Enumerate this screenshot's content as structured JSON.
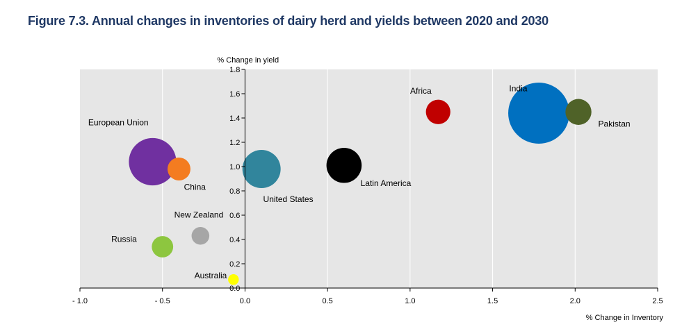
{
  "chart_data": {
    "type": "scatter",
    "title": "Figure 7.3. Annual changes in inventories of dairy herd and yields between 2020 and 2030",
    "xlabel": "% Change in Inventory",
    "ylabel": "% Change in yield",
    "xlim": [
      -1.0,
      2.5
    ],
    "ylim": [
      0.0,
      1.8
    ],
    "x_ticks": [
      -1.0,
      -0.5,
      0.0,
      0.5,
      1.0,
      1.5,
      2.0,
      2.5
    ],
    "x_tick_labels": [
      "- 1.0",
      "- 0.5",
      "0.0",
      "0.5",
      "1.0",
      "1.5",
      "2.0",
      "2.5"
    ],
    "y_ticks": [
      0.0,
      0.2,
      0.4,
      0.6,
      0.8,
      1.0,
      1.2,
      1.4,
      1.6,
      1.8
    ],
    "y_tick_labels": [
      "0.0",
      "0.2",
      "0.4",
      "0.6",
      "0.8",
      "1.0",
      "1.2",
      "1.4",
      "1.6",
      "1.8"
    ],
    "grid": "vertical",
    "points": [
      {
        "label": "European Union",
        "x": -0.56,
        "y": 1.04,
        "size": 1.55,
        "color": "#7030a0"
      },
      {
        "label": "China",
        "x": -0.4,
        "y": 0.98,
        "size": 0.75,
        "color": "#f47c20"
      },
      {
        "label": "New Zealand",
        "x": -0.27,
        "y": 0.43,
        "size": 0.58,
        "color": "#a6a6a6"
      },
      {
        "label": "Russia",
        "x": -0.5,
        "y": 0.34,
        "size": 0.7,
        "color": "#8dc63f"
      },
      {
        "label": "Australia",
        "x": -0.07,
        "y": 0.07,
        "size": 0.35,
        "color": "#ffff00"
      },
      {
        "label": "United States",
        "x": 0.1,
        "y": 0.98,
        "size": 1.25,
        "color": "#31859c"
      },
      {
        "label": "Latin America",
        "x": 0.6,
        "y": 1.01,
        "size": 1.15,
        "color": "#000000"
      },
      {
        "label": "Africa",
        "x": 1.17,
        "y": 1.45,
        "size": 0.8,
        "color": "#c00000"
      },
      {
        "label": "India",
        "x": 1.78,
        "y": 1.44,
        "size": 2.0,
        "color": "#0070c0"
      },
      {
        "label": "Pakistan",
        "x": 2.02,
        "y": 1.45,
        "size": 0.85,
        "color": "#4f6228"
      }
    ],
    "colors": {
      "plot_bg": "#e6e6e6",
      "grid": "#ffffff",
      "title": "#1f3864"
    }
  }
}
